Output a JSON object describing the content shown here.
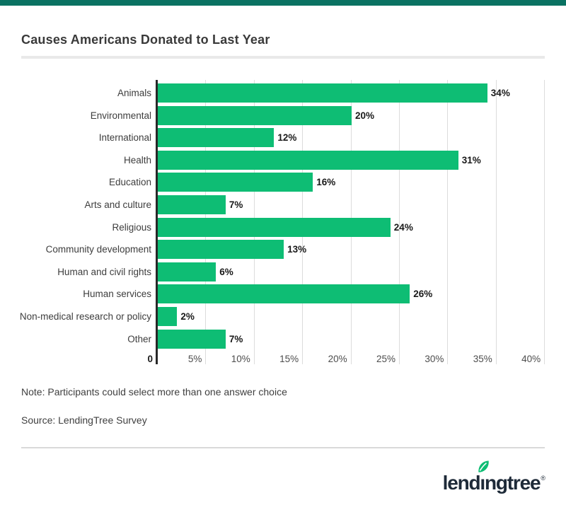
{
  "header": {
    "title": "Causes Americans Donated to Last Year"
  },
  "chart_data": {
    "type": "bar",
    "orientation": "horizontal",
    "title": "Causes Americans Donated to Last Year",
    "categories": [
      "Animals",
      "Environmental",
      "International",
      "Health",
      "Education",
      "Arts and culture",
      "Religious",
      "Community development",
      "Human and civil rights",
      "Human services",
      "Non-medical research or policy",
      "Other"
    ],
    "values": [
      34,
      20,
      12,
      31,
      16,
      7,
      24,
      13,
      6,
      26,
      2,
      7
    ],
    "value_labels": [
      "34%",
      "20%",
      "12%",
      "31%",
      "16%",
      "7%",
      "24%",
      "13%",
      "6%",
      "26%",
      "2%",
      "7%"
    ],
    "x_tick_labels": [
      "0",
      "5%",
      "10%",
      "15%",
      "20%",
      "25%",
      "30%",
      "35%",
      "40%"
    ],
    "xlim": [
      0,
      40
    ],
    "grid": true,
    "legend": "none",
    "bar_color": "#0ebd74",
    "gridline_color": "#dcdcdc",
    "axis_color": "#282828"
  },
  "footnotes": {
    "note": "Note: Participants could select more than one answer choice",
    "source": "Source: LendingTree Survey"
  },
  "branding": {
    "logo_text": "lendıngtree",
    "registered_mark": "®",
    "logo_color": "#1e2a38",
    "leaf_color": "#0ebd74"
  },
  "theme": {
    "top_strip_color": "#0a7262"
  }
}
